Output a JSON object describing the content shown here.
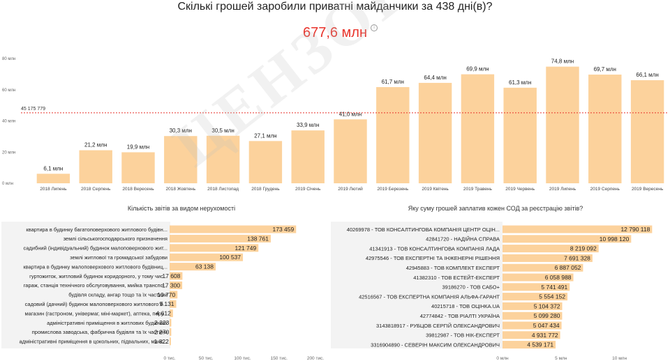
{
  "title": "Скількі грошей заробили приватні майданчики за 438  дні(в)?",
  "total": "677,6 млн",
  "total_icon": "info-icon",
  "watermark": "ЦЕНЗОР.НЕТ",
  "colors": {
    "bar": "#fcd29c",
    "avg_line": "#e8322a",
    "total": "#e8322a",
    "panel_bg": "#f3f3f3"
  },
  "chart_data": [
    {
      "type": "bar",
      "title": "",
      "categories": [
        "2018 Липень",
        "2018 Серпень",
        "2018 Вересень",
        "2018 Жовтень",
        "2018 Листопад",
        "2018 Грудень",
        "2019 Січень",
        "2019 Лютий",
        "2019 Березень",
        "2019 Квітень",
        "2019 Травень",
        "2019 Червень",
        "2019 Липень",
        "2019 Серпень",
        "2019 Вересень"
      ],
      "values": [
        6.1,
        21.2,
        19.9,
        30.3,
        30.5,
        27.1,
        33.9,
        41.0,
        61.7,
        64.4,
        69.9,
        61.3,
        74.8,
        69.7,
        66.1
      ],
      "data_labels": [
        "6,1 млн",
        "21,2 млн",
        "19,9 млн",
        "30,3 млн",
        "30,5 млн",
        "27,1 млн",
        "33,9 млн",
        "41,0 млн",
        "61,7 млн",
        "64,4 млн",
        "69,9 млн",
        "61,3 млн",
        "74,8 млн",
        "69,7 млн",
        "66,1 млн"
      ],
      "yticks": [
        0,
        20,
        40,
        60,
        80
      ],
      "ytick_labels": [
        "0 млн",
        "20 млн",
        "40 млн",
        "60 млн",
        "80 млн"
      ],
      "ylim": [
        0,
        80
      ],
      "reference_line": {
        "value": 45.175779,
        "label": "45 175 779"
      },
      "grid": false
    },
    {
      "type": "bar",
      "orientation": "horizontal",
      "title": "Кількість звітів за видом нерухомості",
      "categories": [
        "квартира в будинку багатоповерхового житлового будівн...",
        "землі сільськогосподарського призначення",
        "садибний (індивідуальний) будинок малоповерхового жит...",
        "землі житлової та громадської забудови",
        "квартира в будинку малоповерхового житлового будівниц...",
        "гуртожиток, житловий будинок коридорного, у тому чис...",
        "гараж, станція технічного обслуговування, мийка транспо...",
        "будівля складу, ангар тощо та їх частини",
        "садовий (дачний) будинок малоповерхового житлового б...",
        "магазин (гастроном, універмаг, міні-маркет), аптека, перу...",
        "адміністративні приміщення в житлових будинках",
        "промислова заводська, фабрична будівля та їх частини",
        "адміністративні приміщення в цокольних, підвальних, манс..."
      ],
      "values": [
        173459,
        138761,
        121749,
        100537,
        63138,
        17608,
        17300,
        10770,
        9131,
        4612,
        2323,
        2270,
        1822
      ],
      "data_labels": [
        "173 459",
        "138 761",
        "121 749",
        "100 537",
        "63 138",
        "17 608",
        "17 300",
        "10 770",
        "9 131",
        "4 612",
        "2 323",
        "2 270",
        "1 822"
      ],
      "xticks": [
        0,
        50000,
        100000,
        150000,
        200000
      ],
      "xtick_labels": [
        "0 тис.",
        "50 тис.",
        "100 тис.",
        "150 тис.",
        "200 тис."
      ],
      "xlim": [
        0,
        200000
      ]
    },
    {
      "type": "bar",
      "orientation": "horizontal",
      "title": "Яку суму грошей заплатив кожен СОД за реєстрацію звітів?",
      "categories": [
        "40269978 - ТОВ КОНСАЛТИНГОВА КОМПАНІЯ ЦЕНТР ОЦІН...",
        "42841720 - НАДІЙНА СПРАВА",
        "41341913 - ТОВ КОНСАЛТИНГОВА КОМПАНІЯ ЛАДА",
        "42975546 - ТОВ ЕКСПЕРТНІ ТА ІНЖЕНЕРНІ РІШЕННЯ",
        "42945883 - ТОВ КОМПЛЕКТ ЕКСПЕРТ",
        "41382310 - ТОВ ЕСТЕЙТ-ЕКСПЕРТ",
        "39186270 - ТОВ САБО+",
        "42516567 - ТОВ ЕКСПЕРТНА КОМПАНІЯ АЛЬФА-ГАРАНТ",
        "40215718 - ТОВ ОЦІНКА.UA",
        "42774842 - ТОВ РІАЛТІ УКРАЇНА",
        "3143818917 - РУБЦОВ СЕРГІЙ ОЛЕКСАНДРОВИЧ",
        "39812987 - ТОВ НІК-ЕКСПЕРТ",
        "3316904890 - СЕВЕРІН МАКСИМ ОЛЕКСАНДРОВИЧ"
      ],
      "values": [
        12790118,
        10998120,
        8219092,
        7691328,
        6887052,
        6058988,
        5741491,
        5554152,
        5104372,
        5099280,
        5047434,
        4931772,
        4539171
      ],
      "data_labels": [
        "12 790 118",
        "10 998 120",
        "8 219 092",
        "7 691 328",
        "6 887 052",
        "6 058 988",
        "5 741 491",
        "5 554 152",
        "5 104 372",
        "5 099 280",
        "5 047 434",
        "4 931 772",
        "4 539 171"
      ],
      "xticks": [
        0,
        5000000,
        10000000
      ],
      "xtick_labels": [
        "0 млн",
        "5 млн",
        "10 млн"
      ],
      "xlim": [
        0,
        14200000
      ]
    }
  ]
}
